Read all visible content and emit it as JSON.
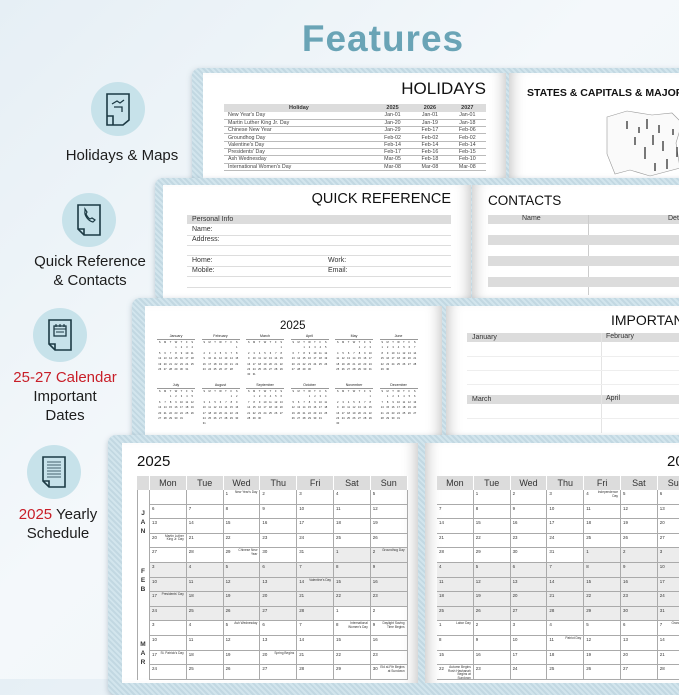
{
  "title": "Features",
  "features": [
    {
      "icon": "map-page-icon",
      "label": "Holidays & Maps"
    },
    {
      "icon": "phone-page-icon",
      "label_line1": "Quick Reference",
      "label_line2": "& Contacts"
    },
    {
      "icon": "calendar-page-icon",
      "label_red": "25-27 Calendar",
      "label_line2": "Important",
      "label_line3": "Dates"
    },
    {
      "icon": "lined-page-icon",
      "label_red": "2025",
      "label_rest": " Yearly",
      "label_line2": "Schedule"
    }
  ],
  "colors": {
    "title": "#6aa4b6",
    "accent_red": "#c81e28",
    "cover": "#c8dfe9",
    "icon_circle": "#c7e2ea"
  },
  "holidays": {
    "title": "HOLIDAYS",
    "columns": [
      "Holiday",
      "2025",
      "2026",
      "2027"
    ],
    "rows": [
      [
        "New Year's Day",
        "Jan-01",
        "Jan-01",
        "Jan-01"
      ],
      [
        "Martin Luther King Jr. Day",
        "Jan-20",
        "Jan-19",
        "Jan-18"
      ],
      [
        "Chinese New Year",
        "Jan-29",
        "Feb-17",
        "Feb-06"
      ],
      [
        "Groundhog Day",
        "Feb-02",
        "Feb-02",
        "Feb-02"
      ],
      [
        "Valentine's Day",
        "Feb-14",
        "Feb-14",
        "Feb-14"
      ],
      [
        "Presidents' Day",
        "Feb-17",
        "Feb-16",
        "Feb-15"
      ],
      [
        "Ash Wednesday",
        "Mar-05",
        "Feb-18",
        "Feb-10"
      ],
      [
        "International Women's Day",
        "Mar-08",
        "Mar-08",
        "Mar-08"
      ]
    ],
    "map_title": "STATES & CAPITALS & MAJOR"
  },
  "quick_reference": {
    "title": "QUICK REFERENCE",
    "section": "Personal Info",
    "name": "Name:",
    "address": "Address:",
    "home": "Home:",
    "work": "Work:",
    "mobile": "Mobile:",
    "email": "Email:"
  },
  "contacts": {
    "title": "CONTACTS",
    "col_name": "Name",
    "col_detail": "Det"
  },
  "calendar": {
    "year": "2025",
    "months": [
      "January",
      "February",
      "March",
      "April",
      "May",
      "June",
      "July",
      "August",
      "September",
      "October",
      "November",
      "December"
    ],
    "weekdays": [
      "S",
      "M",
      "T",
      "W",
      "T",
      "F",
      "S"
    ]
  },
  "important_dates": {
    "title": "IMPORTANT DATES",
    "months": [
      "January",
      "February",
      "March",
      "April"
    ]
  },
  "yearly": {
    "year": "2025",
    "weekdays": [
      "Mon",
      "Tue",
      "Wed",
      "Thu",
      "Fri",
      "Sat",
      "Sun"
    ],
    "left_months": [
      {
        "label": "J A N",
        "row": 1
      },
      {
        "label": "F E B",
        "row": 5
      },
      {
        "label": "M A R",
        "row": 10
      }
    ],
    "left_weeks": [
      [
        [
          "",
          ""
        ],
        [
          "",
          ""
        ],
        [
          "1",
          "New Year's Day"
        ],
        [
          "2"
        ],
        [
          "3"
        ],
        [
          "4"
        ],
        [
          "5"
        ]
      ],
      [
        [
          "6"
        ],
        [
          "7"
        ],
        [
          "8"
        ],
        [
          "9"
        ],
        [
          "10"
        ],
        [
          "11"
        ],
        [
          "12"
        ]
      ],
      [
        [
          "13"
        ],
        [
          "14"
        ],
        [
          "15"
        ],
        [
          "16"
        ],
        [
          "17"
        ],
        [
          "18"
        ],
        [
          "19"
        ]
      ],
      [
        [
          "20",
          "Martin Luther King Jr. Day"
        ],
        [
          "21"
        ],
        [
          "22"
        ],
        [
          "23"
        ],
        [
          "24"
        ],
        [
          "25"
        ],
        [
          "26"
        ]
      ],
      [
        [
          "27"
        ],
        [
          "28"
        ],
        [
          "29",
          "Chinese New Year"
        ],
        [
          "30"
        ],
        [
          "31"
        ],
        [
          "1",
          "",
          1
        ],
        [
          "2",
          "Groundhog Day",
          1
        ]
      ],
      [
        [
          "3",
          "",
          1
        ],
        [
          "4",
          "",
          1
        ],
        [
          "5",
          "",
          1
        ],
        [
          "6",
          "",
          1
        ],
        [
          "7",
          "",
          1
        ],
        [
          "8",
          "",
          1
        ],
        [
          "9",
          "",
          1
        ]
      ],
      [
        [
          "10",
          "",
          1
        ],
        [
          "11",
          "",
          1
        ],
        [
          "12",
          "",
          1
        ],
        [
          "13",
          "",
          1
        ],
        [
          "14",
          "Valentine's Day",
          1
        ],
        [
          "15",
          "",
          1
        ],
        [
          "16",
          "",
          1
        ]
      ],
      [
        [
          "17",
          "Presidents' Day",
          1
        ],
        [
          "18",
          "",
          1
        ],
        [
          "19",
          "",
          1
        ],
        [
          "20",
          "",
          1
        ],
        [
          "21",
          "",
          1
        ],
        [
          "22",
          "",
          1
        ],
        [
          "23",
          "",
          1
        ]
      ],
      [
        [
          "24",
          "",
          1
        ],
        [
          "25",
          "",
          1
        ],
        [
          "26",
          "",
          1
        ],
        [
          "27",
          "",
          1
        ],
        [
          "28",
          "",
          1
        ],
        [
          "1"
        ],
        [
          "2"
        ]
      ],
      [
        [
          "3"
        ],
        [
          "4"
        ],
        [
          "5",
          "Ash Wednesday"
        ],
        [
          "6"
        ],
        [
          "7"
        ],
        [
          "8",
          "International Women's Day"
        ],
        [
          "9",
          "Daylight Saving Time Begins"
        ]
      ],
      [
        [
          "10"
        ],
        [
          "11"
        ],
        [
          "12"
        ],
        [
          "13"
        ],
        [
          "14"
        ],
        [
          "15"
        ],
        [
          "16"
        ]
      ],
      [
        [
          "17",
          "St. Patrick's Day"
        ],
        [
          "18"
        ],
        [
          "19"
        ],
        [
          "20",
          "Spring Begins"
        ],
        [
          "21"
        ],
        [
          "22"
        ],
        [
          "23"
        ]
      ],
      [
        [
          "24"
        ],
        [
          "25"
        ],
        [
          "26"
        ],
        [
          "27"
        ],
        [
          "28"
        ],
        [
          "29"
        ],
        [
          "30",
          "Eid al-Fitr Begins at Sundown"
        ]
      ]
    ],
    "right_weeks": [
      [
        [
          "",
          ""
        ],
        [
          "1"
        ],
        [
          "2"
        ],
        [
          "3"
        ],
        [
          "4",
          "Independence Day"
        ],
        [
          "5"
        ],
        [
          "6"
        ]
      ],
      [
        [
          "7"
        ],
        [
          "8"
        ],
        [
          "9"
        ],
        [
          "10"
        ],
        [
          "11"
        ],
        [
          "12"
        ],
        [
          "13"
        ]
      ],
      [
        [
          "14"
        ],
        [
          "15"
        ],
        [
          "16"
        ],
        [
          "17"
        ],
        [
          "18"
        ],
        [
          "19"
        ],
        [
          "20"
        ]
      ],
      [
        [
          "21"
        ],
        [
          "22"
        ],
        [
          "23"
        ],
        [
          "24"
        ],
        [
          "25"
        ],
        [
          "26"
        ],
        [
          "27"
        ]
      ],
      [
        [
          "28"
        ],
        [
          "29"
        ],
        [
          "30"
        ],
        [
          "31"
        ],
        [
          "1",
          "",
          1
        ],
        [
          "2",
          "",
          1
        ],
        [
          "3",
          "",
          1
        ]
      ],
      [
        [
          "4",
          "",
          1
        ],
        [
          "5",
          "",
          1
        ],
        [
          "6",
          "",
          1
        ],
        [
          "7",
          "",
          1
        ],
        [
          "8",
          "",
          1
        ],
        [
          "9",
          "",
          1
        ],
        [
          "10",
          "",
          1
        ]
      ],
      [
        [
          "11",
          "",
          1
        ],
        [
          "12",
          "",
          1
        ],
        [
          "13",
          "",
          1
        ],
        [
          "14",
          "",
          1
        ],
        [
          "15",
          "",
          1
        ],
        [
          "16",
          "",
          1
        ],
        [
          "17",
          "",
          1
        ]
      ],
      [
        [
          "18",
          "",
          1
        ],
        [
          "19",
          "",
          1
        ],
        [
          "20",
          "",
          1
        ],
        [
          "21",
          "",
          1
        ],
        [
          "22",
          "",
          1
        ],
        [
          "23",
          "",
          1
        ],
        [
          "24",
          "",
          1
        ]
      ],
      [
        [
          "25",
          "",
          1
        ],
        [
          "26",
          "",
          1
        ],
        [
          "27",
          "",
          1
        ],
        [
          "28",
          "",
          1
        ],
        [
          "29",
          "",
          1
        ],
        [
          "30",
          "",
          1
        ],
        [
          "31",
          "",
          1
        ]
      ],
      [
        [
          "1",
          "Labor Day"
        ],
        [
          "2"
        ],
        [
          "3"
        ],
        [
          "4"
        ],
        [
          "5"
        ],
        [
          "6"
        ],
        [
          "7",
          "Grandparents' Day"
        ]
      ],
      [
        [
          "8"
        ],
        [
          "9"
        ],
        [
          "10"
        ],
        [
          "11",
          "Patriot Day"
        ],
        [
          "12"
        ],
        [
          "13"
        ],
        [
          "14"
        ]
      ],
      [
        [
          "15"
        ],
        [
          "16"
        ],
        [
          "17"
        ],
        [
          "18"
        ],
        [
          "19"
        ],
        [
          "20"
        ],
        [
          "21"
        ]
      ],
      [
        [
          "22",
          "Autumn Begins Rosh Hashanah Begins at Sundown"
        ],
        [
          "23"
        ],
        [
          "24"
        ],
        [
          "25"
        ],
        [
          "26"
        ],
        [
          "27"
        ],
        [
          "28"
        ]
      ]
    ]
  }
}
